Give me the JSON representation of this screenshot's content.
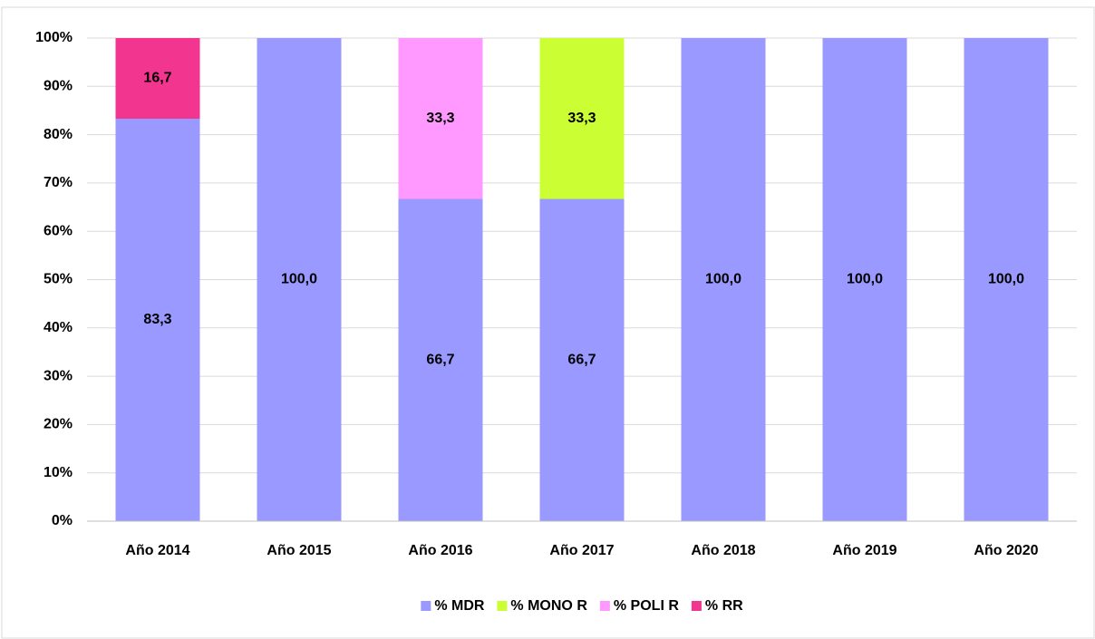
{
  "chart_data": {
    "type": "stacked_bar",
    "categories": [
      "Año 2014",
      "Año 2015",
      "Año 2016",
      "Año 2017",
      "Año 2018",
      "Año 2019",
      "Año 2020"
    ],
    "series": [
      {
        "name": "% MDR",
        "color": "#9999ff",
        "values": [
          83.3,
          100,
          66.7,
          66.7,
          100,
          100,
          100
        ],
        "value_labels": [
          "83,3",
          "100,0",
          "66,7",
          "66,7",
          "100,0",
          "100,0",
          "100,0"
        ]
      },
      {
        "name": "% MONO R",
        "color": "#ccff33",
        "values": [
          null,
          null,
          null,
          33.3,
          null,
          null,
          null
        ],
        "value_labels": [
          null,
          null,
          null,
          "33,3",
          null,
          null,
          null
        ]
      },
      {
        "name": "% POLI R",
        "color": "#ff99ff",
        "values": [
          null,
          null,
          33.3,
          null,
          null,
          null,
          null
        ],
        "value_labels": [
          null,
          null,
          "33,3",
          null,
          null,
          null,
          null
        ]
      },
      {
        "name": "% RR",
        "color": "#f2358f",
        "values": [
          16.7,
          null,
          null,
          null,
          null,
          null,
          null
        ],
        "value_labels": [
          "16,7",
          null,
          null,
          null,
          null,
          null,
          null
        ]
      }
    ],
    "ylim": [
      0,
      100
    ],
    "yticks": [
      {
        "value": 0,
        "label": "0%"
      },
      {
        "value": 10,
        "label": "10%"
      },
      {
        "value": 20,
        "label": "20%"
      },
      {
        "value": 30,
        "label": "30%"
      },
      {
        "value": 40,
        "label": "40%"
      },
      {
        "value": 50,
        "label": "50%"
      },
      {
        "value": 60,
        "label": "60%"
      },
      {
        "value": 70,
        "label": "70%"
      },
      {
        "value": 80,
        "label": "80%"
      },
      {
        "value": 90,
        "label": "90%"
      },
      {
        "value": 100,
        "label": "100%"
      }
    ],
    "grid": true,
    "legend": "bottom"
  }
}
